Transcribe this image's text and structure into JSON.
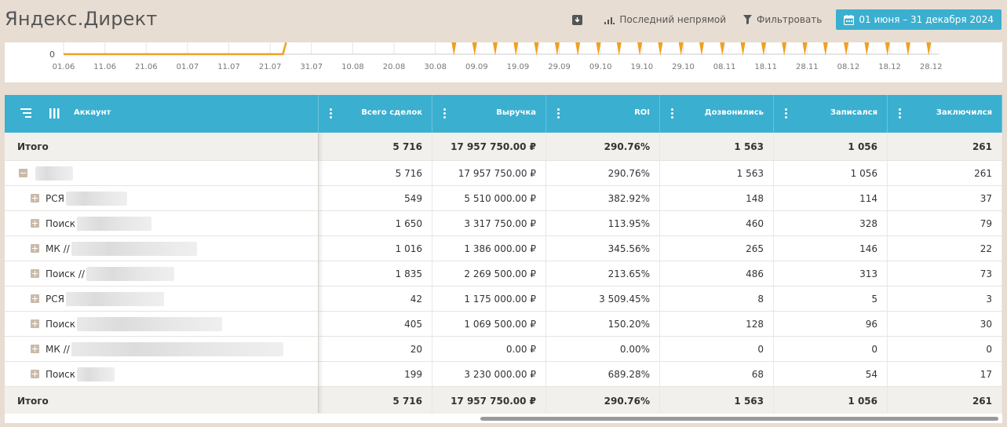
{
  "header": {
    "title": "Яндекс.Директ",
    "download_icon": "download-icon",
    "attribution_label": "Последний непрямой",
    "filter_label": "Фильтровать",
    "date_range": "01 июня – 31 декабря 2024"
  },
  "chart_data": {
    "type": "line",
    "x": [
      "01.06",
      "11.06",
      "21.06",
      "01.07",
      "11.07",
      "21.07",
      "31.07",
      "10.08",
      "20.08",
      "30.08",
      "09.09",
      "19.09",
      "29.09",
      "09.10",
      "19.10",
      "29.10",
      "08.11",
      "18.11",
      "28.11",
      "08.12",
      "18.12",
      "28.12"
    ],
    "y_tick_visible": "0",
    "series_color": "#f0a020",
    "note_visible": "only bottom of chart visible; flat at 0 until ~17.07 then rises, periodic spikes from late August"
  },
  "table": {
    "columns": [
      {
        "label": "Аккаунт"
      },
      {
        "label": "Всего сделок"
      },
      {
        "label": "Выручка"
      },
      {
        "label": "ROI"
      },
      {
        "label": "Дозвонились"
      },
      {
        "label": "Записался"
      },
      {
        "label": "Заключился"
      }
    ],
    "top_total": {
      "name": "Итого",
      "values": [
        "5 716",
        "17 957 750.00 ₽",
        "290.76%",
        "1 563",
        "1 056",
        "261"
      ]
    },
    "group": {
      "name": "",
      "values": [
        "5 716",
        "17 957 750.00 ₽",
        "290.76%",
        "1 563",
        "1 056",
        "261"
      ]
    },
    "rows": [
      {
        "name": "РСЯ",
        "values": [
          "549",
          "5 510 000.00 ₽",
          "382.92%",
          "148",
          "114",
          "37"
        ]
      },
      {
        "name": "Поиск",
        "values": [
          "1 650",
          "3 317 750.00 ₽",
          "113.95%",
          "460",
          "328",
          "79"
        ]
      },
      {
        "name": "МК //",
        "values": [
          "1 016",
          "1 386 000.00 ₽",
          "345.56%",
          "265",
          "146",
          "22"
        ]
      },
      {
        "name": "Поиск //",
        "values": [
          "1 835",
          "2 269 500.00 ₽",
          "213.65%",
          "486",
          "313",
          "73"
        ]
      },
      {
        "name": "РСЯ",
        "values": [
          "42",
          "1 175 000.00 ₽",
          "3 509.45%",
          "8",
          "5",
          "3"
        ]
      },
      {
        "name": "Поиск",
        "values": [
          "405",
          "1 069 500.00 ₽",
          "150.20%",
          "128",
          "96",
          "30"
        ]
      },
      {
        "name": "МК //",
        "values": [
          "20",
          "0.00 ₽",
          "0.00%",
          "0",
          "0",
          "0"
        ]
      },
      {
        "name": "Поиск",
        "values": [
          "199",
          "3 230 000.00 ₽",
          "689.28%",
          "68",
          "54",
          "17"
        ]
      }
    ],
    "bottom_total": {
      "name": "Итого",
      "values": [
        "5 716",
        "17 957 750.00 ₽",
        "290.76%",
        "1 563",
        "1 056",
        "261"
      ]
    }
  }
}
